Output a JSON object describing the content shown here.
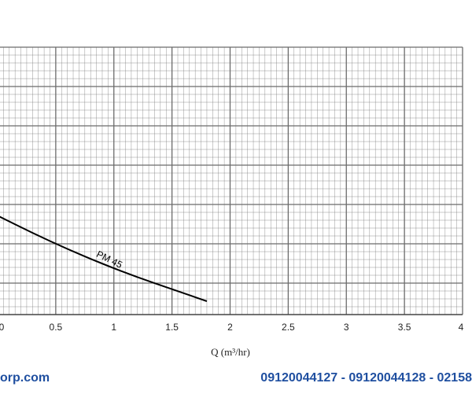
{
  "chart_data": {
    "type": "line",
    "xlabel": "Q (m³/hr)",
    "x_ticks": [
      "0",
      "0.5",
      "1",
      "1.5",
      "2",
      "2.5",
      "3",
      "3.5",
      "4"
    ],
    "xlim": [
      0,
      4
    ],
    "grid": true,
    "series": [
      {
        "name": "PM 45",
        "x": [
          0,
          0.3,
          0.6,
          0.9,
          1.2,
          1.5,
          1.8
        ],
        "y": [
          0.37,
          0.305,
          0.245,
          0.19,
          0.14,
          0.095,
          0.05
        ]
      }
    ]
  },
  "footer": {
    "website": "orp.com",
    "phones": "09120044127 - 09120044128 - 02158"
  },
  "colors": {
    "grid": "#6b6b6b",
    "curve": "#000000",
    "footer_text": "#1f4fa0"
  }
}
